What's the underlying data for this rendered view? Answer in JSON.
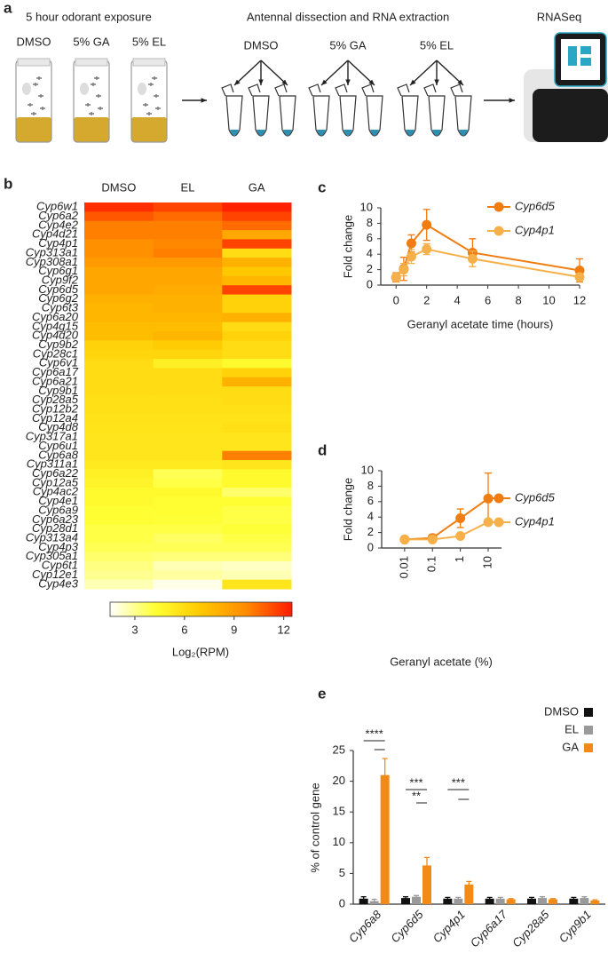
{
  "schematic": {
    "panel": "a",
    "steps": [
      {
        "title": "5 hour odorant exposure",
        "labels": [
          "DMSO",
          "5% GA",
          "5% EL"
        ]
      },
      {
        "title": "Antennal dissection and RNA extraction",
        "labels": [
          "DMSO",
          "5% GA",
          "5% EL"
        ]
      },
      {
        "title": "RNASeq"
      }
    ]
  },
  "chart_data": [
    {
      "type": "heatmap",
      "panel": "b",
      "columns": [
        "DMSO",
        "EL",
        "GA"
      ],
      "rows": [
        "Cyp6w1",
        "Cyp6a2",
        "Cyp4e2",
        "Cyp4d21",
        "Cyp4p1",
        "Cyp313a1",
        "Cyp308a1",
        "Cyp6g1",
        "Cyp9f2",
        "Cyp6d5",
        "Cyp6g2",
        "Cyp6t3",
        "Cyp6a20",
        "Cyp4g15",
        "Cyp4d20",
        "Cyp9b2",
        "Cyp28c1",
        "Cyp6v1",
        "Cyp6a17",
        "Cyp6a21",
        "Cyp9b1",
        "Cyp28a5",
        "Cyp12b2",
        "Cyp12a4",
        "Cyp4d8",
        "Cyp317a1",
        "Cyp6u1",
        "Cyp6a8",
        "Cyp311a1",
        "Cyp6a22",
        "Cyp12a5",
        "Cyp4ac2",
        "Cyp4e1",
        "Cyp6a9",
        "Cyp6a23",
        "Cyp28d1",
        "Cyp313a4",
        "Cyp4p3",
        "Cyp305a1",
        "Cyp6t1",
        "Cyp12e1",
        "Cyp4e3"
      ],
      "values": [
        [
          12,
          11.5,
          12.3
        ],
        [
          11,
          10.5,
          11.5
        ],
        [
          10,
          10,
          10.5
        ],
        [
          10,
          10,
          8.5
        ],
        [
          9.5,
          9.8,
          11.5
        ],
        [
          9.5,
          10,
          6
        ],
        [
          9,
          9,
          8
        ],
        [
          8.5,
          8.5,
          7
        ],
        [
          8.5,
          8.5,
          7.8
        ],
        [
          8.5,
          8.3,
          11.5
        ],
        [
          8,
          8,
          6.5
        ],
        [
          7.8,
          8,
          6.5
        ],
        [
          7.8,
          7.8,
          8
        ],
        [
          7.5,
          7.5,
          6
        ],
        [
          7.5,
          7.8,
          6.5
        ],
        [
          6.5,
          6.8,
          6
        ],
        [
          6.3,
          6.3,
          6
        ],
        [
          6,
          5,
          4.5
        ],
        [
          6,
          6,
          6.5
        ],
        [
          6,
          6,
          8
        ],
        [
          6,
          6,
          6
        ],
        [
          5.8,
          5.8,
          6
        ],
        [
          5.8,
          5.8,
          5.8
        ],
        [
          5.7,
          5.7,
          5.7
        ],
        [
          5.6,
          5.6,
          5.8
        ],
        [
          5.5,
          5.5,
          5.5
        ],
        [
          5.5,
          5.5,
          5.5
        ],
        [
          5.5,
          5.5,
          10
        ],
        [
          5.3,
          5.3,
          5.5
        ],
        [
          5,
          3.8,
          4.5
        ],
        [
          4.8,
          4,
          4.5
        ],
        [
          4.5,
          4.5,
          3.5
        ],
        [
          4.5,
          4.3,
          4.3
        ],
        [
          4.3,
          4.3,
          4
        ],
        [
          4.3,
          4.2,
          4
        ],
        [
          4,
          4,
          4.2
        ],
        [
          4,
          3.6,
          4
        ],
        [
          3.8,
          3.8,
          3.8
        ],
        [
          3.5,
          3.3,
          3.3
        ],
        [
          3.2,
          2.5,
          2.3
        ],
        [
          3,
          2.8,
          2.5
        ],
        [
          2.5,
          1.8,
          5.5
        ]
      ],
      "highlight_rows": [
        4,
        9,
        27
      ],
      "highlight_color": "#f08a1c",
      "colorscale": [
        "#ffffff",
        "#ffff33",
        "#ffc800",
        "#ff8a00",
        "#ff1a00"
      ],
      "clim": [
        1.5,
        12.5
      ],
      "cticks": [
        3,
        6,
        9,
        12
      ],
      "colorbar_label": "Log₂(RPM)"
    },
    {
      "type": "line",
      "panel": "c",
      "xlabel": "Geranyl acetate time (hours)",
      "ylabel": "Fold change",
      "x": [
        0,
        0.5,
        1,
        2,
        5,
        12
      ],
      "xlim": [
        -1,
        12
      ],
      "xticks": [
        0,
        2,
        4,
        6,
        8,
        10,
        12
      ],
      "ylim": [
        0,
        10
      ],
      "yticks": [
        0,
        2,
        4,
        6,
        8,
        10
      ],
      "series": [
        {
          "name": "Cyp6d5",
          "color": "#ef7d12",
          "values": [
            1.0,
            2.1,
            5.4,
            7.8,
            4.2,
            1.9
          ],
          "errors": [
            0.6,
            1.5,
            1.1,
            2.0,
            1.8,
            1.5
          ]
        },
        {
          "name": "Cyp4p1",
          "color": "#f5b04a",
          "values": [
            1.0,
            2.0,
            3.7,
            4.65,
            3.4,
            1.05
          ],
          "errors": [
            0.5,
            0.8,
            0.9,
            0.7,
            1.0,
            0.4
          ]
        }
      ]
    },
    {
      "type": "line",
      "panel": "d",
      "xlabel": "Geranyl acetate (%)",
      "ylabel": "Fold change",
      "xscale": "log",
      "x": [
        0.01,
        0.1,
        1,
        10
      ],
      "xlim": [
        0.0015,
        30
      ],
      "xticks": [
        0.01,
        0.1,
        1,
        10
      ],
      "xtick_rotation": -90,
      "ylim": [
        0,
        10
      ],
      "yticks": [
        0,
        2,
        4,
        6,
        8,
        10
      ],
      "series": [
        {
          "name": "Cyp6d5",
          "color": "#ef7d12",
          "values": [
            1.1,
            1.3,
            3.85,
            6.4
          ],
          "errors": [
            0.3,
            0.4,
            1.2,
            3.3
          ]
        },
        {
          "name": "Cyp4p1",
          "color": "#f5b04a",
          "values": [
            1.1,
            1.1,
            1.55,
            3.35
          ],
          "errors": [
            0.2,
            0.15,
            0.1,
            0.35
          ]
        }
      ]
    },
    {
      "type": "bar",
      "panel": "e",
      "ylabel": "% of control gene",
      "categories": [
        "Cyp6a8",
        "Cyp6d5",
        "Cyp4p1",
        "Cyp6a17",
        "Cyp28a5",
        "Cyp9b1"
      ],
      "ylim": [
        0,
        25
      ],
      "yticks": [
        0,
        5,
        10,
        15,
        20,
        25
      ],
      "series": [
        {
          "name": "DMSO",
          "color": "#111111",
          "values": [
            0.9,
            1.0,
            0.9,
            0.9,
            0.9,
            0.9
          ],
          "errors": [
            0.3,
            0.2,
            0.2,
            0.2,
            0.2,
            0.2
          ]
        },
        {
          "name": "EL",
          "color": "#9a9a9a",
          "values": [
            0.5,
            1.2,
            0.9,
            0.9,
            1.0,
            1.0
          ],
          "errors": [
            0.3,
            0.2,
            0.2,
            0.2,
            0.2,
            0.2
          ]
        },
        {
          "name": "GA",
          "color": "#f28a1a",
          "values": [
            21,
            6.3,
            3.2,
            0.8,
            0.8,
            0.6
          ],
          "errors": [
            2.7,
            1.3,
            0.5,
            0.1,
            0.1,
            0.1
          ]
        }
      ],
      "annotations": [
        "****",
        "***",
        "**",
        "***"
      ]
    }
  ]
}
